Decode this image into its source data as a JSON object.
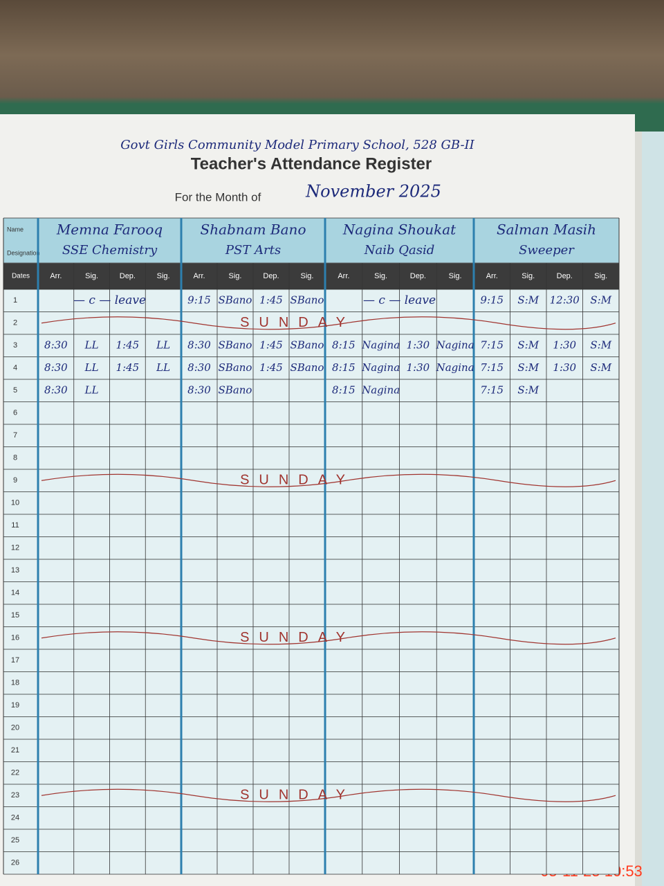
{
  "header": {
    "school": "Govt Girls Community Model Primary School, 528 GB-II",
    "title": "Teacher's Attendance Register",
    "month_label": "For the Month of",
    "month": "November 2025"
  },
  "table": {
    "name_label": "Name",
    "designation_label": "Designation",
    "dates_label": "Dates",
    "column_headers": [
      "Arr.",
      "Sig.",
      "Dep.",
      "Sig."
    ],
    "staff": [
      {
        "name": "Memna Farooq",
        "designation": "SSE Chemistry"
      },
      {
        "name": "Shabnam Bano",
        "designation": "PST Arts"
      },
      {
        "name": "Nagina Shoukat",
        "designation": "Naib Qasid"
      },
      {
        "name": "Salman Masih",
        "designation": "Sweeper"
      }
    ],
    "rows": [
      {
        "date": "1",
        "cells": [
          "— c — leave",
          null,
          null,
          null,
          "9:15",
          "SBano",
          "1:45",
          "SBano",
          "— c — leave",
          null,
          null,
          null,
          "9:15",
          "S:M",
          "12:30",
          "S:M"
        ]
      },
      {
        "date": "2",
        "note": "SUNDAY"
      },
      {
        "date": "3",
        "cells": [
          "8:30",
          "LL",
          "1:45",
          "LL",
          "8:30",
          "SBano",
          "1:45",
          "SBano",
          "8:15",
          "Nagina",
          "1:30",
          "Nagina",
          "7:15",
          "S:M",
          "1:30",
          "S:M"
        ]
      },
      {
        "date": "4",
        "cells": [
          "8:30",
          "LL",
          "1:45",
          "LL",
          "8:30",
          "SBano",
          "1:45",
          "SBano",
          "8:15",
          "Nagina",
          "1:30",
          "Nagina",
          "7:15",
          "S:M",
          "1:30",
          "S:M"
        ]
      },
      {
        "date": "5",
        "cells": [
          "8:30",
          "LL",
          null,
          null,
          "8:30",
          "SBano",
          null,
          null,
          "8:15",
          "Nagina",
          null,
          null,
          "7:15",
          "S:M",
          null,
          null
        ]
      },
      {
        "date": "6"
      },
      {
        "date": "7"
      },
      {
        "date": "8"
      },
      {
        "date": "9",
        "note": "SUNDAY"
      },
      {
        "date": "10"
      },
      {
        "date": "11"
      },
      {
        "date": "12"
      },
      {
        "date": "13"
      },
      {
        "date": "14"
      },
      {
        "date": "15"
      },
      {
        "date": "16",
        "note": "SUNDAY"
      },
      {
        "date": "17"
      },
      {
        "date": "18"
      },
      {
        "date": "19"
      },
      {
        "date": "20"
      },
      {
        "date": "21"
      },
      {
        "date": "22"
      },
      {
        "date": "23",
        "note": "SUNDAY"
      },
      {
        "date": "24"
      },
      {
        "date": "25"
      },
      {
        "date": "26"
      }
    ]
  },
  "timestamp": "05-11-25 10:53"
}
